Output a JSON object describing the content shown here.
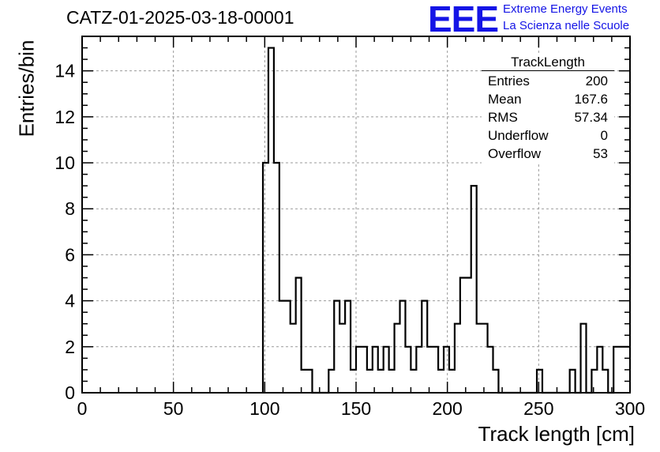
{
  "chart_data": {
    "type": "histogram",
    "title": "CATZ-01-2025-03-18-00001",
    "xlabel": "Track length [cm]",
    "ylabel": "Entries/bin",
    "xlim": [
      0,
      300
    ],
    "ylim": [
      0,
      15.5
    ],
    "bin_width": 3,
    "x_ticks": [
      0,
      50,
      100,
      150,
      200,
      250,
      300
    ],
    "y_ticks": [
      0,
      2,
      4,
      6,
      8,
      10,
      12,
      14
    ],
    "grid": true,
    "bins": [
      {
        "x": 99,
        "y": 10
      },
      {
        "x": 102,
        "y": 15
      },
      {
        "x": 105,
        "y": 10
      },
      {
        "x": 108,
        "y": 4
      },
      {
        "x": 111,
        "y": 4
      },
      {
        "x": 114,
        "y": 3
      },
      {
        "x": 117,
        "y": 5
      },
      {
        "x": 120,
        "y": 1
      },
      {
        "x": 123,
        "y": 1
      },
      {
        "x": 126,
        "y": 0
      },
      {
        "x": 129,
        "y": 0
      },
      {
        "x": 132,
        "y": 0
      },
      {
        "x": 135,
        "y": 1
      },
      {
        "x": 138,
        "y": 4
      },
      {
        "x": 141,
        "y": 3
      },
      {
        "x": 144,
        "y": 4
      },
      {
        "x": 147,
        "y": 1
      },
      {
        "x": 150,
        "y": 2
      },
      {
        "x": 153,
        "y": 2
      },
      {
        "x": 156,
        "y": 1
      },
      {
        "x": 159,
        "y": 2
      },
      {
        "x": 162,
        "y": 1
      },
      {
        "x": 165,
        "y": 2
      },
      {
        "x": 168,
        "y": 1
      },
      {
        "x": 171,
        "y": 3
      },
      {
        "x": 174,
        "y": 4
      },
      {
        "x": 177,
        "y": 2
      },
      {
        "x": 180,
        "y": 1
      },
      {
        "x": 183,
        "y": 2
      },
      {
        "x": 186,
        "y": 4
      },
      {
        "x": 189,
        "y": 2
      },
      {
        "x": 192,
        "y": 2
      },
      {
        "x": 195,
        "y": 1
      },
      {
        "x": 198,
        "y": 2
      },
      {
        "x": 201,
        "y": 1
      },
      {
        "x": 204,
        "y": 3
      },
      {
        "x": 207,
        "y": 5
      },
      {
        "x": 210,
        "y": 5
      },
      {
        "x": 213,
        "y": 9
      },
      {
        "x": 216,
        "y": 3
      },
      {
        "x": 219,
        "y": 3
      },
      {
        "x": 222,
        "y": 2
      },
      {
        "x": 225,
        "y": 1
      },
      {
        "x": 228,
        "y": 0
      },
      {
        "x": 231,
        "y": 0
      },
      {
        "x": 234,
        "y": 0
      },
      {
        "x": 237,
        "y": 0
      },
      {
        "x": 240,
        "y": 0
      },
      {
        "x": 243,
        "y": 0
      },
      {
        "x": 246,
        "y": 0
      },
      {
        "x": 249,
        "y": 1
      },
      {
        "x": 252,
        "y": 0
      },
      {
        "x": 255,
        "y": 0
      },
      {
        "x": 258,
        "y": 0
      },
      {
        "x": 261,
        "y": 0
      },
      {
        "x": 264,
        "y": 0
      },
      {
        "x": 267,
        "y": 1
      },
      {
        "x": 270,
        "y": 0
      },
      {
        "x": 273,
        "y": 3
      },
      {
        "x": 276,
        "y": 0
      },
      {
        "x": 279,
        "y": 1
      },
      {
        "x": 282,
        "y": 2
      },
      {
        "x": 285,
        "y": 1
      },
      {
        "x": 288,
        "y": 0
      },
      {
        "x": 291,
        "y": 2
      },
      {
        "x": 294,
        "y": 2
      },
      {
        "x": 297,
        "y": 2
      }
    ],
    "line_color": "#000000"
  },
  "logo": {
    "mark": "EEE",
    "line1": "Extreme Energy Events",
    "line2": "La Scienza nelle Scuole",
    "color": "#1414e6"
  },
  "stats": {
    "title": "TrackLength",
    "rows": [
      {
        "key": "Entries",
        "value": "200"
      },
      {
        "key": "Mean",
        "value": "167.6"
      },
      {
        "key": "RMS",
        "value": "57.34"
      },
      {
        "key": "Underflow",
        "value": "0"
      },
      {
        "key": "Overflow",
        "value": "53"
      }
    ]
  }
}
